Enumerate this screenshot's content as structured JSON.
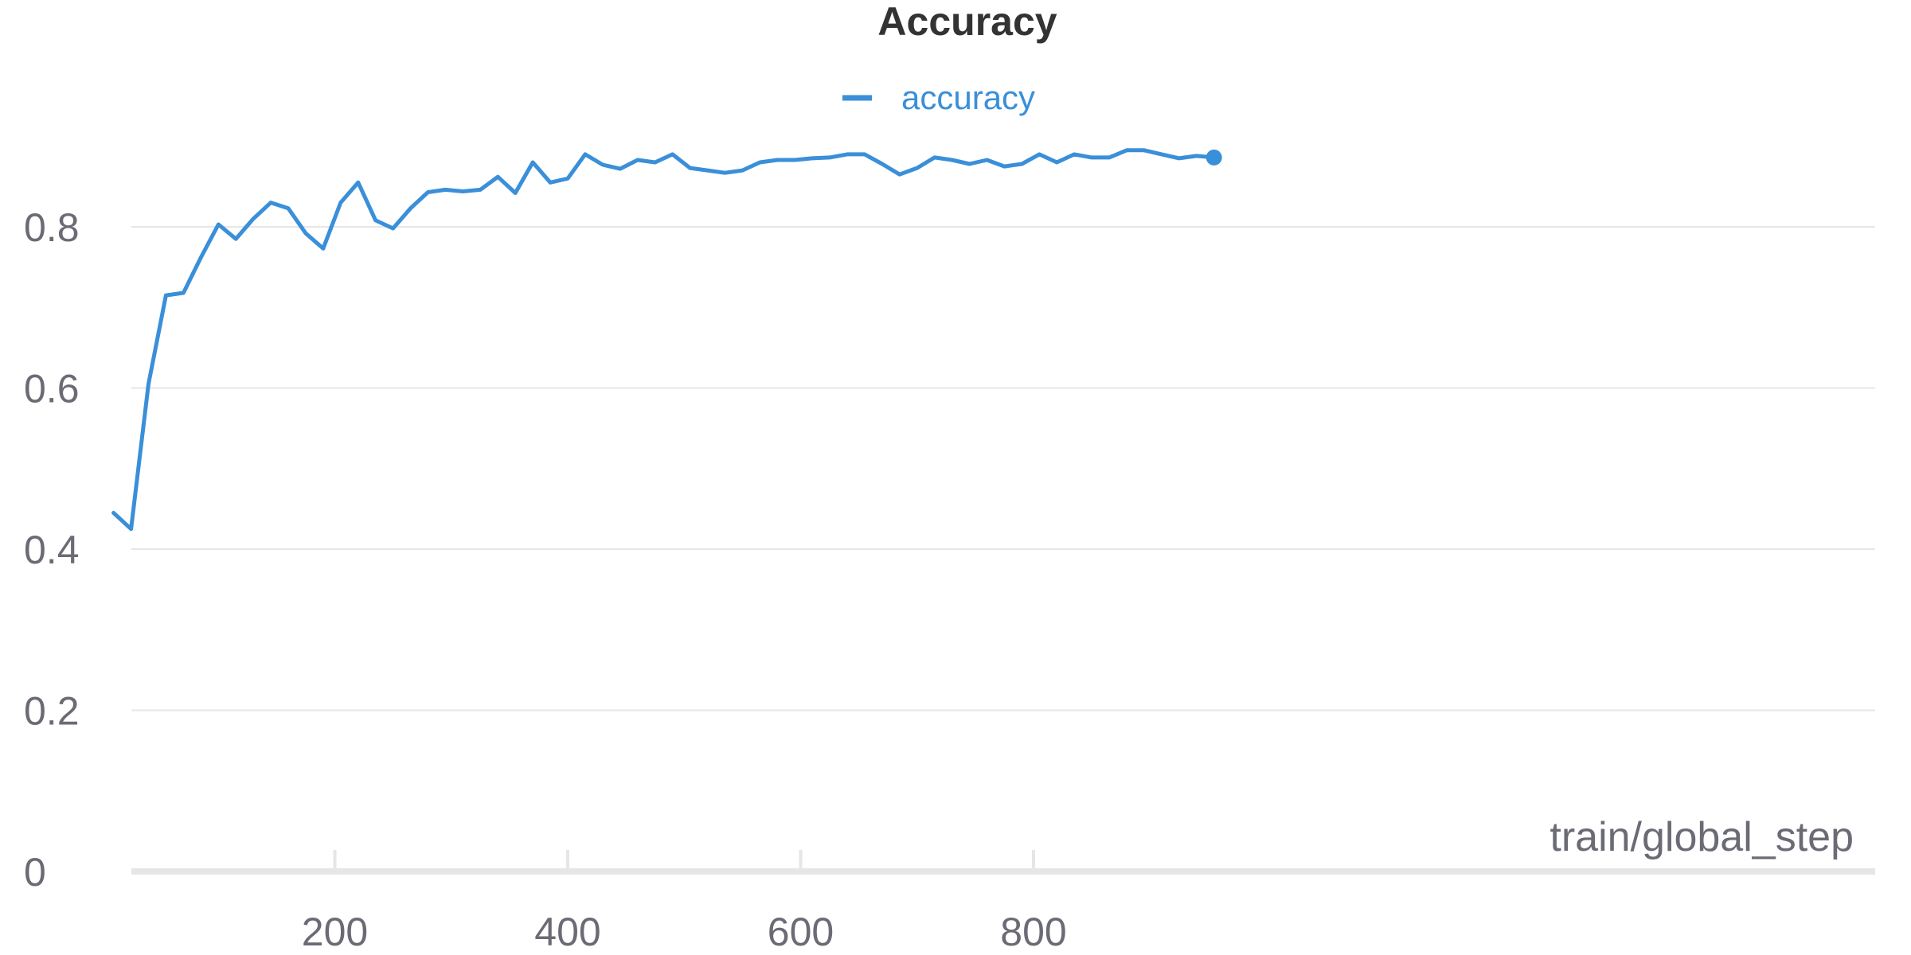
{
  "chart_data": {
    "type": "line",
    "title": "Accuracy",
    "xlabel": "train/global_step",
    "ylabel": "",
    "xlim": [
      10,
      960
    ],
    "ylim": [
      0,
      0.9
    ],
    "grid": true,
    "legend_position": "top-center",
    "x_ticks": [
      200,
      400,
      600,
      800
    ],
    "y_ticks": [
      0,
      0.2,
      0.4,
      0.6,
      0.8
    ],
    "x_tick_labels": [
      "200",
      "400",
      "600",
      "800"
    ],
    "y_tick_labels": [
      "0",
      "0.2",
      "0.4",
      "0.6",
      "0.8"
    ],
    "series": [
      {
        "name": "accuracy",
        "color": "#3a8fd9",
        "x": [
          10,
          25,
          40,
          55,
          70,
          85,
          100,
          115,
          130,
          145,
          160,
          175,
          190,
          205,
          220,
          235,
          250,
          265,
          280,
          295,
          310,
          325,
          340,
          355,
          370,
          385,
          400,
          415,
          430,
          445,
          460,
          475,
          490,
          505,
          520,
          535,
          550,
          565,
          580,
          595,
          610,
          625,
          640,
          655,
          670,
          685,
          700,
          715,
          730,
          745,
          760,
          775,
          790,
          805,
          820,
          835,
          850,
          865,
          880,
          895,
          910,
          925,
          940,
          955
        ],
        "y": [
          0.445,
          0.425,
          0.605,
          0.715,
          0.718,
          0.762,
          0.803,
          0.785,
          0.81,
          0.83,
          0.823,
          0.792,
          0.773,
          0.83,
          0.855,
          0.808,
          0.798,
          0.823,
          0.843,
          0.846,
          0.844,
          0.846,
          0.862,
          0.842,
          0.88,
          0.855,
          0.86,
          0.89,
          0.877,
          0.872,
          0.883,
          0.88,
          0.89,
          0.873,
          0.87,
          0.867,
          0.87,
          0.88,
          0.883,
          0.883,
          0.885,
          0.886,
          0.89,
          0.89,
          0.878,
          0.865,
          0.873,
          0.886,
          0.883,
          0.878,
          0.883,
          0.875,
          0.878,
          0.89,
          0.88,
          0.89,
          0.886,
          0.886,
          0.895,
          0.895,
          0.89,
          0.885,
          0.888,
          0.886
        ]
      }
    ]
  }
}
